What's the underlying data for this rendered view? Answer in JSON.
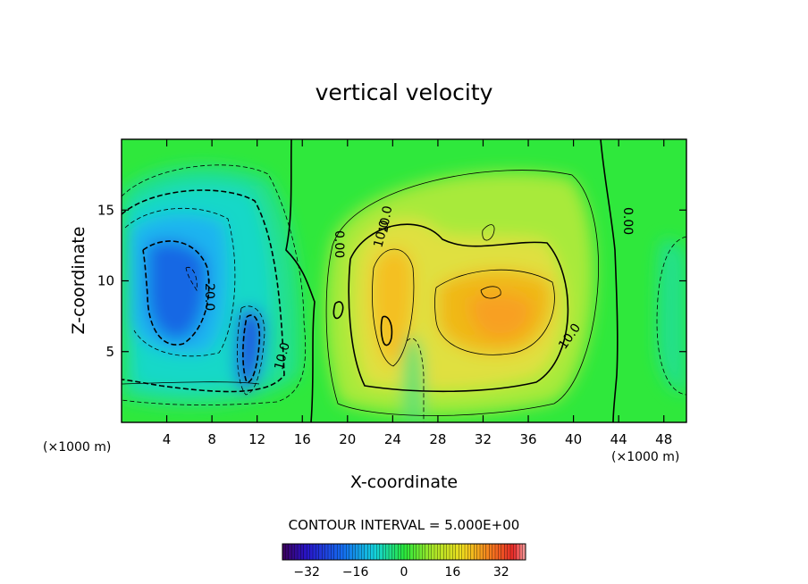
{
  "chart_data": {
    "type": "heatmap",
    "title": "vertical velocity",
    "xlabel": "X-coordinate",
    "ylabel": "Z-coordinate",
    "x_units": "(×1000 m)",
    "x_units_right": "(×1000 m)",
    "xlim": [
      0,
      50
    ],
    "ylim": [
      0,
      20
    ],
    "x_ticks": [
      4,
      8,
      12,
      16,
      20,
      24,
      28,
      32,
      36,
      40,
      44,
      48
    ],
    "y_ticks": [
      5,
      10,
      15
    ],
    "contour_interval_text": "CONTOUR INTERVAL = 5.000E+00",
    "colorbar": {
      "min": -40,
      "max": 40,
      "ticks": [
        -32,
        -16,
        0,
        16,
        32
      ],
      "tick_labels": [
        "−32",
        "−16",
        "0",
        "16",
        "32"
      ]
    },
    "contour_labels": [
      {
        "text": "-20.0",
        "x": 7.5,
        "z": 8.8
      },
      {
        "text": "10.0",
        "x": 13.8,
        "z": 5.0
      },
      {
        "text": "0.00",
        "x": 19.0,
        "z": 12.2
      },
      {
        "text": "10.0",
        "x": 21.8,
        "z": 13.2
      },
      {
        "text": "10.0",
        "x": 22.0,
        "z": 14.2
      },
      {
        "text": "10.0",
        "x": 39.2,
        "z": 6.8
      },
      {
        "text": "0.00",
        "x": 44.5,
        "z": 14.2
      }
    ],
    "features": [
      {
        "kind": "downdraft",
        "x": 5.5,
        "z": 9.5,
        "peak": -28
      },
      {
        "kind": "downdraft",
        "x": 11.0,
        "z": 5.0,
        "peak": -26
      },
      {
        "kind": "updraft",
        "x": 23.5,
        "z": 9.0,
        "peak": 22
      },
      {
        "kind": "updraft",
        "x": 33.0,
        "z": 8.0,
        "peak": 18
      }
    ]
  }
}
